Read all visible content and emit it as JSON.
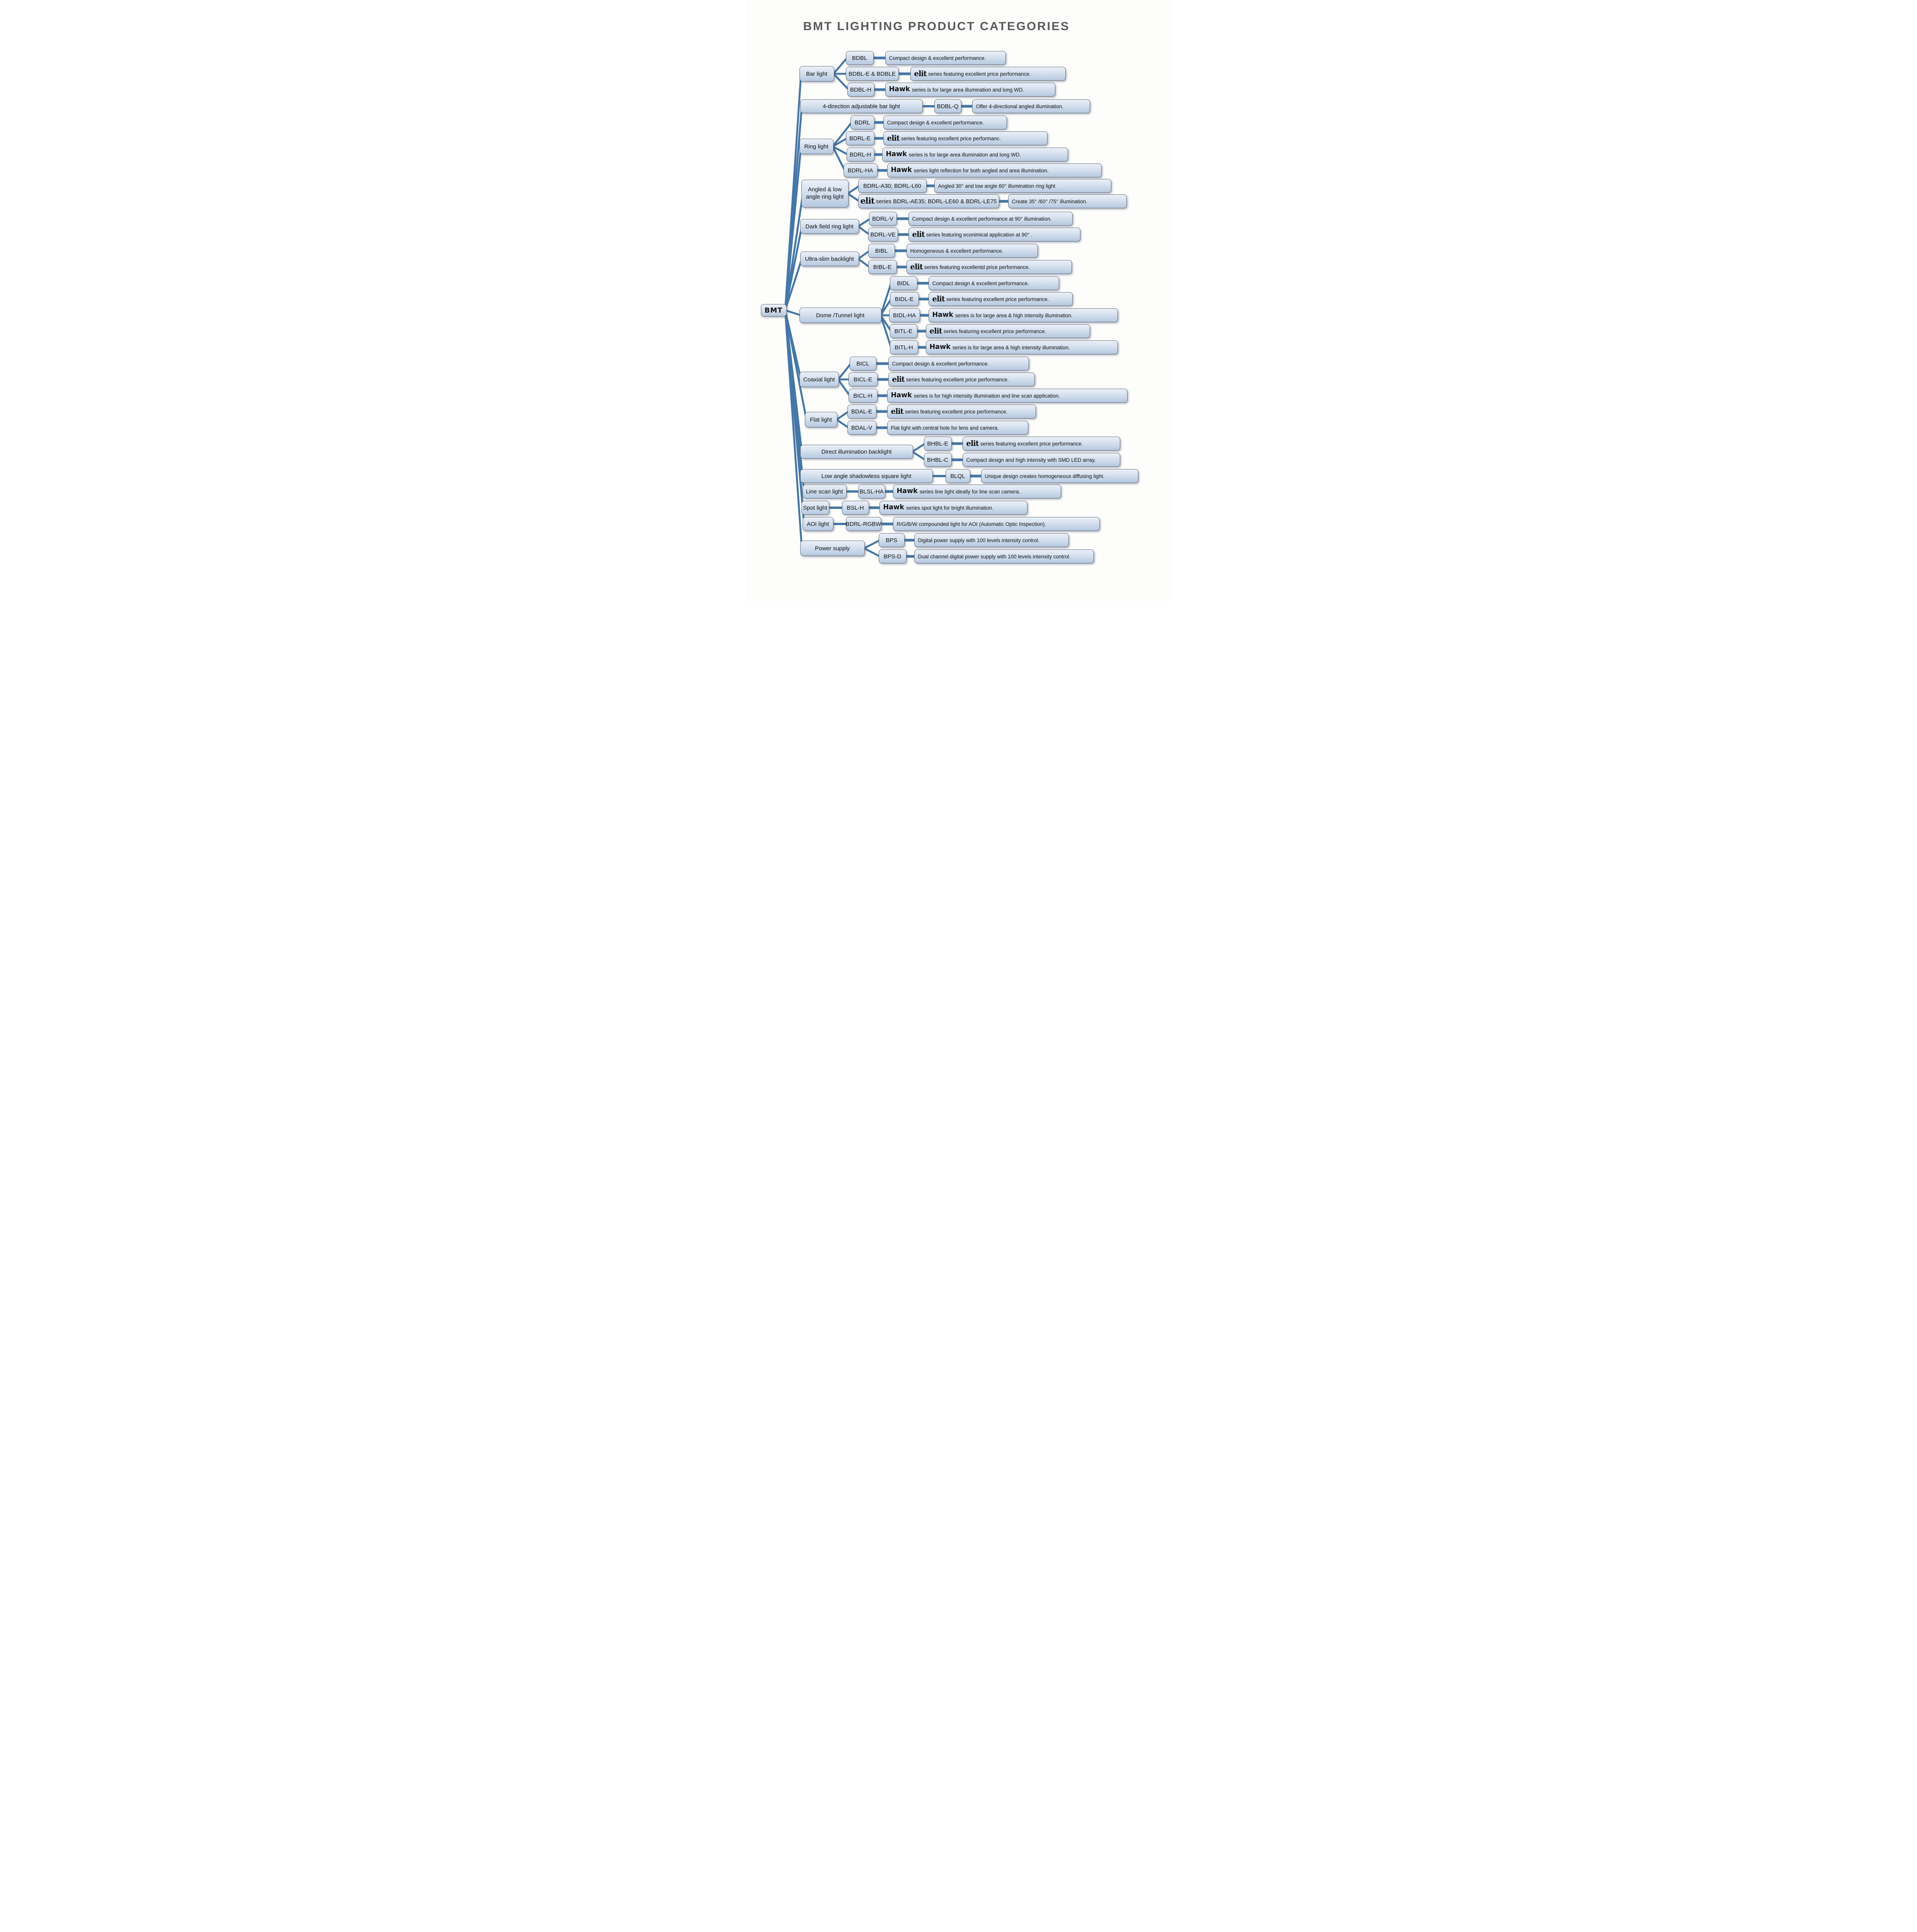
{
  "title": "BMT LIGHTING PRODUCT CATEGORIES",
  "root_label": "BMT",
  "colors": {
    "connector": "#4577a7",
    "box_fill_top": "#eaf0f8",
    "box_fill_bottom": "#b6c9e0",
    "box_border": "#5d6673",
    "title_text": "#595959",
    "body_text": "#111111"
  },
  "groups": [
    {
      "category": "Bar light",
      "children": [
        {
          "model": "BDBL",
          "desc": "Compact design & excellent performance."
        },
        {
          "model": "BDBL-E & BDBLE",
          "desc_brand": "elit",
          "desc": "series featuring  excellent price performance."
        },
        {
          "model": "BDBL-H",
          "desc_brand": "Hawk",
          "desc": "series is for large area illumination and long WD."
        }
      ]
    },
    {
      "category": "4-direction adjustable bar light",
      "inline": true,
      "children": [
        {
          "model": "BDBL-Q",
          "desc": "Offer 4-directional angled  illumination."
        }
      ]
    },
    {
      "category": "Ring light",
      "children": [
        {
          "model": "BDRL",
          "desc": "Compact design & excellent performance."
        },
        {
          "model": "BDRL-E",
          "desc_brand": "elit",
          "desc": "series featuring excellent price performanc."
        },
        {
          "model": "BDRL-H",
          "desc_brand": "Hawk",
          "desc": "series is for large area illumination and long WD."
        },
        {
          "model": "BDRL-HA",
          "desc_brand": "Hawk",
          "desc": "series  light reflection for both angled and area illumination."
        }
      ]
    },
    {
      "category": "Angled & low angle ring light",
      "children": [
        {
          "model": "BDRL-A30; BDRL-L60",
          "desc": "Angled 30° and low angle 60° illumination ring light"
        },
        {
          "model_brand": "elit",
          "model": "series BDRL-AE35; BDRL-LE60 & BDRL-LE75",
          "desc": "Create 35° /60° /75° illumination."
        }
      ]
    },
    {
      "category": "Dark field ring light",
      "children": [
        {
          "model": "BDRL-V",
          "desc": "Compact design & excellent performance at 90° illumination."
        },
        {
          "model": "BDRL-VE",
          "desc_brand": "elit",
          "desc": "series featuring econimical application at 90° ."
        }
      ]
    },
    {
      "category": "Ultra-slim backlight",
      "children": [
        {
          "model": "BIBL",
          "desc": "Homogeneous & excellent performance."
        },
        {
          "model": "BIBL-E",
          "desc_brand": "elit",
          "desc": "series featuring excellentd price performance."
        }
      ]
    },
    {
      "category": "Dome /Tunnel light",
      "children": [
        {
          "model": "BIDL",
          "desc": "Compact design & excellent performance."
        },
        {
          "model": "BIDL-E",
          "desc_brand": "elit",
          "desc": "series featuring excellent price performance."
        },
        {
          "model": "BIDL-HA",
          "desc_brand": "Hawk",
          "desc": "series is for large area & high intensity illumination."
        },
        {
          "model": "BITL-E",
          "desc_brand": "elit",
          "desc": "series featuring excellent price performance."
        },
        {
          "model": "BITL-H",
          "desc_brand": "Hawk",
          "desc": "series is for large area & high intensity illumination."
        }
      ]
    },
    {
      "category": "Coaxial light",
      "children": [
        {
          "model": "BICL",
          "desc": "Compact design & excellent performance."
        },
        {
          "model": "BICL-E",
          "desc_brand": "elit",
          "desc": "series featuring  excellent price performance."
        },
        {
          "model": "BICL-H",
          "desc_brand": "Hawk",
          "desc": "series is for  high intensity illumination and line scan application."
        }
      ]
    },
    {
      "category": "Flat light",
      "children": [
        {
          "model": "BDAL-E",
          "desc_brand": "elit",
          "desc": "series featuring excellent price performance."
        },
        {
          "model": "BDAL-V",
          "desc": "Flat light with central hole for lens and camera."
        }
      ]
    },
    {
      "category": "Direct illumination backlight",
      "children": [
        {
          "model": "BHBL-E",
          "desc_brand": "elit",
          "desc": "series featuring excellent price performance."
        },
        {
          "model": "BHBL-C",
          "desc": "Compact design and high intensity with SMD LED array."
        }
      ]
    },
    {
      "category": "Low angle shadowless square light",
      "inline": true,
      "children": [
        {
          "model": "BLQL",
          "desc": "Unique design creates homogeneous diffusing light."
        }
      ]
    },
    {
      "category": "Line scan light",
      "inline": true,
      "children": [
        {
          "model": "BLSL-HA",
          "desc_brand": "Hawk",
          "desc": "series line light ideally for line scan camera."
        }
      ]
    },
    {
      "category": "Spot light",
      "inline": true,
      "children": [
        {
          "model": "BSL-H",
          "desc_brand": "Hawk",
          "desc": "series  spot light for bright  illumination."
        }
      ]
    },
    {
      "category": "AOI light",
      "inline": true,
      "children": [
        {
          "model": "BDRL-RGBW",
          "desc": "R/G/B/W compounded light for AOI (Automatic Optic Inspection)."
        }
      ]
    },
    {
      "category": "Power supply",
      "children": [
        {
          "model": "BPS",
          "desc": "Digital power supply with 100 levels intensity control."
        },
        {
          "model": "BPS-D",
          "desc": "Dual channel digital power supply with 100 levels intensity control."
        }
      ]
    }
  ]
}
